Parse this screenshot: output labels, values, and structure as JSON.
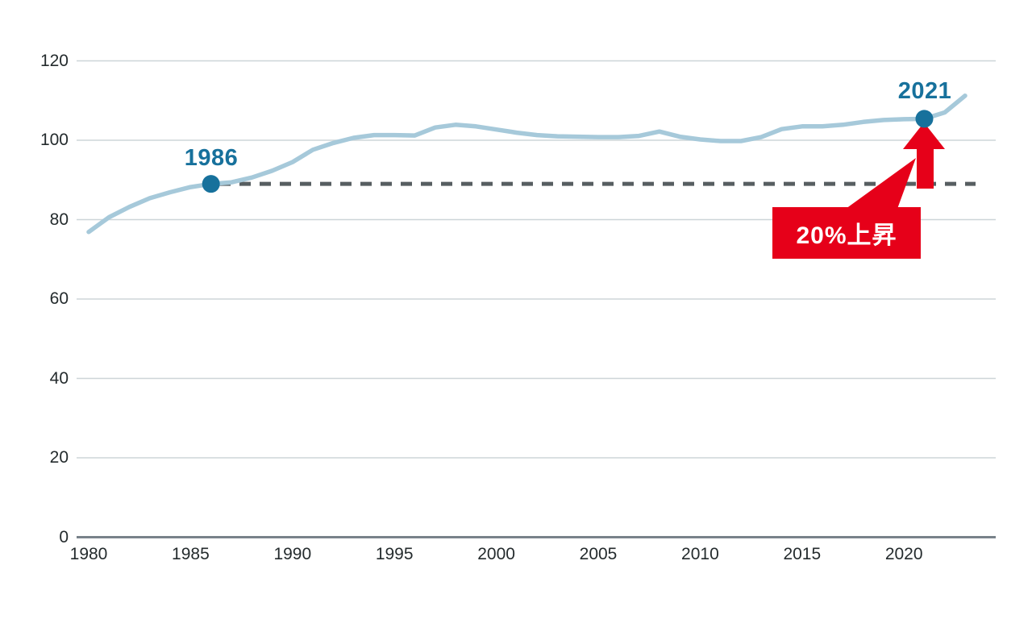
{
  "chart_data": {
    "type": "line",
    "title": "",
    "xlabel": "",
    "ylabel": "",
    "x": [
      1980,
      1981,
      1982,
      1983,
      1984,
      1985,
      1986,
      1987,
      1988,
      1989,
      1990,
      1991,
      1992,
      1993,
      1994,
      1995,
      1996,
      1997,
      1998,
      1999,
      2000,
      2001,
      2002,
      2003,
      2004,
      2005,
      2006,
      2007,
      2008,
      2009,
      2010,
      2011,
      2012,
      2013,
      2014,
      2015,
      2016,
      2017,
      2018,
      2019,
      2020,
      2021,
      2022,
      2023
    ],
    "series": [
      {
        "name": "index-line",
        "values": [
          76.9,
          80.6,
          83.2,
          85.4,
          86.9,
          88.2,
          89.0,
          89.4,
          90.6,
          92.3,
          94.5,
          97.6,
          99.3,
          100.6,
          101.3,
          101.3,
          101.2,
          103.2,
          103.9,
          103.5,
          102.7,
          101.9,
          101.3,
          101.0,
          100.9,
          100.8,
          100.8,
          101.1,
          102.2,
          100.9,
          100.2,
          99.8,
          99.8,
          100.8,
          102.8,
          103.5,
          103.5,
          103.9,
          104.6,
          105.1,
          105.3,
          105.4,
          107.0,
          111.2
        ]
      }
    ],
    "x_ticks": [
      1980,
      1985,
      1990,
      1995,
      2000,
      2005,
      2010,
      2015,
      2020
    ],
    "y_ticks": [
      0,
      20,
      40,
      60,
      80,
      100,
      120
    ],
    "xlim": [
      1979.4,
      2023.8
    ],
    "ylim": [
      0,
      120
    ],
    "grid": true,
    "legend": "none",
    "baseline": {
      "value": 89,
      "style": "dashed"
    },
    "annotations": {
      "point_1986": {
        "year": 1986,
        "value": 89.0,
        "label": "1986"
      },
      "point_2021": {
        "year": 2021,
        "value": 105.4,
        "label": "2021"
      },
      "callout": {
        "text": "20%上昇"
      }
    },
    "colors": {
      "line": "#a6c9da",
      "marker": "#17719c",
      "annotation_text": "#17719c",
      "callout_bg": "#e60019",
      "callout_text": "#ffffff",
      "dashed_line": "#575e61",
      "gridline": "#cdd5d8",
      "axis_line": "#78828a",
      "tick_text": "#242b2d"
    }
  }
}
